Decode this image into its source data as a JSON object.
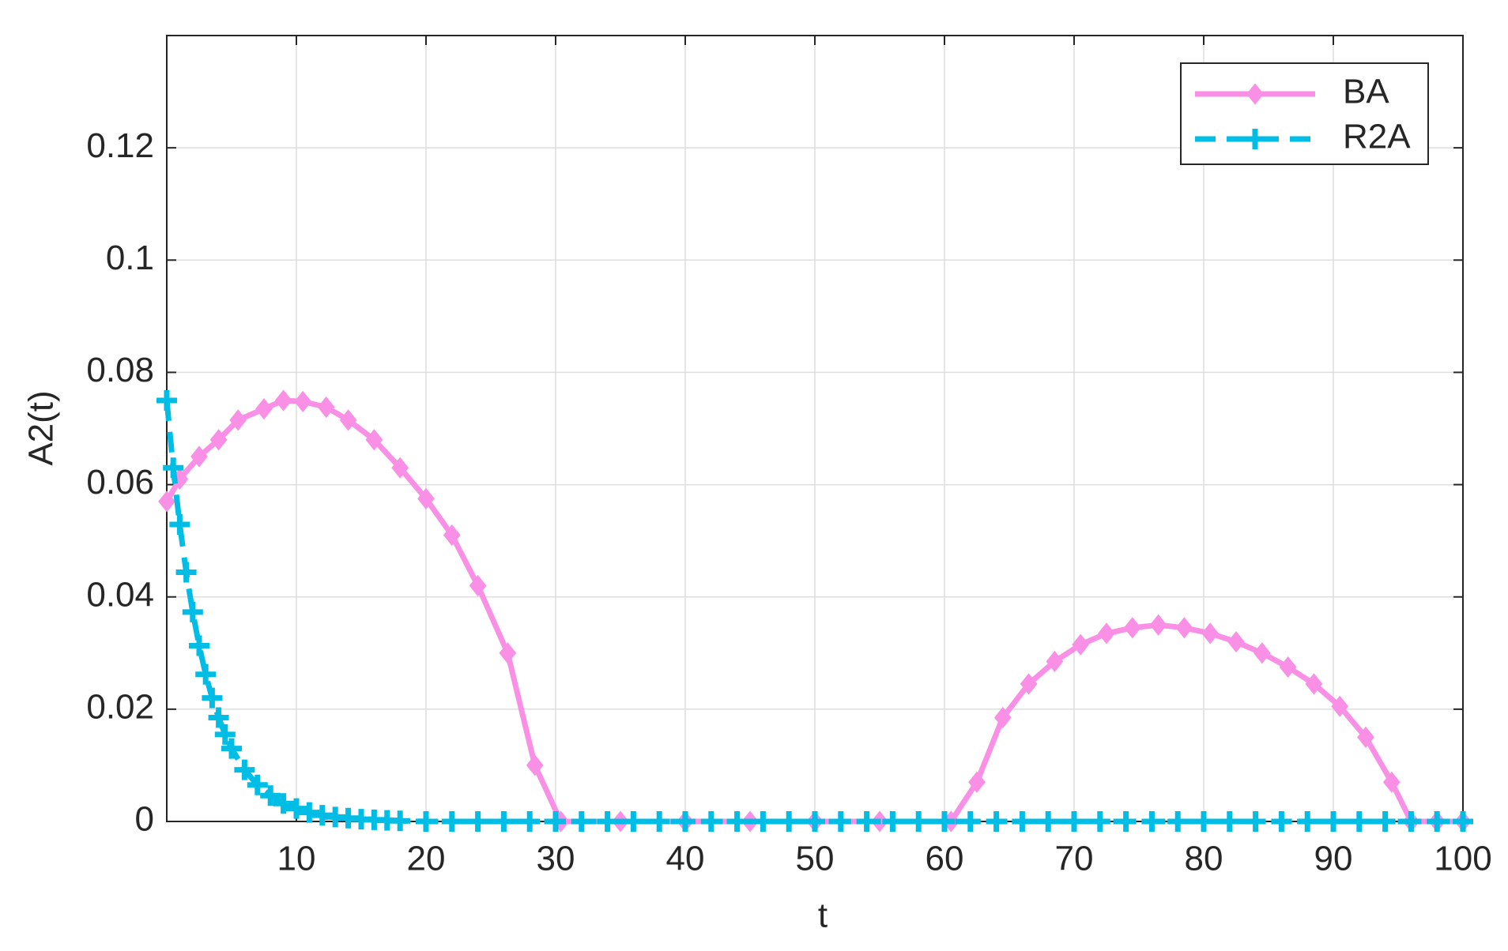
{
  "chart_data": {
    "type": "line",
    "xlabel": "t",
    "ylabel": "A2(t)",
    "xlim": [
      0,
      100
    ],
    "ylim": [
      0,
      0.14
    ],
    "xticks": [
      10,
      20,
      30,
      40,
      50,
      60,
      70,
      80,
      90,
      100
    ],
    "yticks": [
      0,
      0.02,
      0.04,
      0.06,
      0.08,
      0.1,
      0.12
    ],
    "grid": true,
    "legend_position": "upper right",
    "series": [
      {
        "name": "BA",
        "color": "#f990e6",
        "line_style": "solid",
        "marker": "diamond",
        "x": [
          0,
          1,
          2.5,
          4,
          5.5,
          7.5,
          9,
          10.5,
          12.3,
          14,
          16,
          18,
          20,
          22,
          24,
          26.3,
          28.4,
          30.4,
          35,
          40,
          45,
          50,
          55,
          60.5,
          62.5,
          64.5,
          66.5,
          68.5,
          70.5,
          72.5,
          74.5,
          76.5,
          78.5,
          80.5,
          82.5,
          84.5,
          86.5,
          88.5,
          90.5,
          92.5,
          94.5,
          96,
          98,
          100
        ],
        "values": [
          0.057,
          0.061,
          0.065,
          0.068,
          0.0715,
          0.0735,
          0.075,
          0.0748,
          0.0738,
          0.0715,
          0.068,
          0.063,
          0.0575,
          0.051,
          0.042,
          0.03,
          0.01,
          0,
          0,
          0,
          0,
          0,
          0,
          0,
          0.007,
          0.0185,
          0.0245,
          0.0285,
          0.0315,
          0.0335,
          0.0345,
          0.035,
          0.0345,
          0.0335,
          0.032,
          0.03,
          0.0275,
          0.0245,
          0.0205,
          0.015,
          0.007,
          0,
          0,
          0
        ]
      },
      {
        "name": "R2A",
        "color": "#00bde6",
        "line_style": "dashed",
        "marker": "plus",
        "x": [
          0,
          0.5,
          1,
          1.5,
          2,
          2.5,
          3,
          3.5,
          4,
          4.5,
          5,
          6,
          7,
          8,
          9,
          10,
          11,
          12,
          13,
          14,
          15,
          16,
          17,
          18,
          20,
          22,
          24,
          26,
          28,
          30,
          32,
          34,
          36,
          38,
          40,
          42,
          44,
          46,
          48,
          50,
          52,
          54,
          56,
          58,
          60,
          62,
          64,
          66,
          68,
          70,
          72,
          74,
          76,
          78,
          80,
          82,
          84,
          86,
          88,
          90,
          92,
          94,
          96,
          98,
          100
        ],
        "values": [
          0.075,
          0.063,
          0.0529,
          0.0444,
          0.0373,
          0.0313,
          0.0262,
          0.022,
          0.0185,
          0.0155,
          0.013,
          0.0092,
          0.0065,
          0.0046,
          0.0032,
          0.0023,
          0.0016,
          0.0011,
          0.0008,
          0.0006,
          0.0004,
          0.0003,
          0.0002,
          0.0001,
          0,
          0,
          0,
          0,
          0,
          0,
          0,
          0,
          0,
          0,
          0,
          0,
          0,
          0,
          0,
          0,
          0,
          0,
          0,
          0,
          0,
          0,
          0,
          0,
          0,
          0,
          0,
          0,
          0,
          0,
          0,
          0,
          0,
          0,
          0,
          0,
          0,
          0,
          0,
          0,
          0
        ]
      }
    ]
  }
}
